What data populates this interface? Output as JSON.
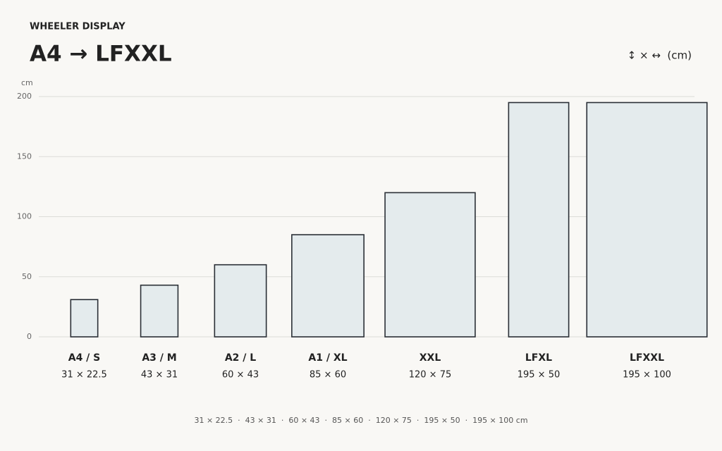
{
  "chart_data": {
    "type": "variable-width-bar",
    "subtitle": "WHEELER DISPLAY",
    "title": "A4 → LFXXL",
    "legend": "↕ × ↔  (cm)",
    "y_label": "cm",
    "categories": [
      "A4 / S",
      "A3 / M",
      "A2 / L",
      "A1 / XL",
      "XXL",
      "LFXL",
      "LFXXL"
    ],
    "values": [
      31,
      43,
      60,
      85,
      120,
      195,
      195
    ],
    "widths": [
      22.5,
      31,
      43,
      60,
      75,
      50,
      100
    ],
    "dimension_labels": [
      "31 × 22.5",
      "43 × 31",
      "60 × 43",
      "85 × 60",
      "120 × 75",
      "195 × 50",
      "195 × 100"
    ],
    "color": "#e4ebed",
    "edge_color": "#2a2f36",
    "ylim": [
      0,
      200
    ],
    "yticks": [
      0,
      50,
      100,
      150,
      200
    ],
    "grid": true,
    "footnote": "31 × 22.5  ·  43 × 31  ·  60 × 43  ·  85 × 60  ·  120 × 75  ·  195 × 50  ·  195 × 100 cm"
  }
}
